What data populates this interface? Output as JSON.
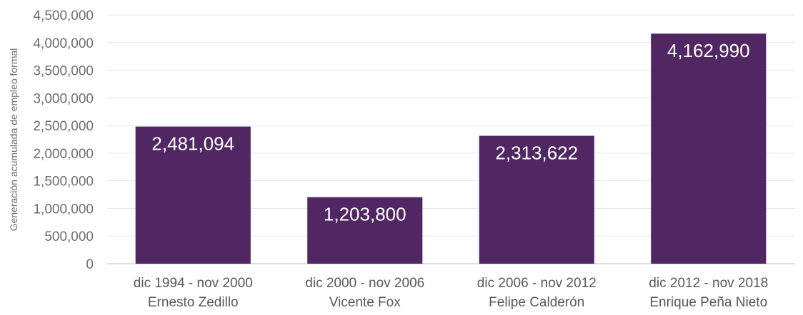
{
  "chart_data": {
    "type": "bar",
    "title": "",
    "ylabel": "Generación acumulada de empleo formal",
    "xlabel": "",
    "ylim": [
      0,
      4500000
    ],
    "yticks": [
      0,
      500000,
      1000000,
      1500000,
      2000000,
      2500000,
      3000000,
      3500000,
      4000000,
      4500000
    ],
    "ytick_labels": [
      "0",
      "500,000",
      "1,000,000",
      "1,500,000",
      "2,000,000",
      "2,500,000",
      "3,000,000",
      "3,500,000",
      "4,000,000",
      "4,500,000"
    ],
    "categories": [
      {
        "period": "dic 1994 - nov 2000",
        "name": "Ernesto Zedillo"
      },
      {
        "period": "dic 2000 - nov 2006",
        "name": "Vicente Fox"
      },
      {
        "period": "dic 2006 - nov 2012",
        "name": "Felipe Calderón"
      },
      {
        "period": "dic 2012 - nov 2018",
        "name": "Enrique Peña Nieto"
      }
    ],
    "values": [
      2481094,
      1203800,
      2313622,
      4162990
    ],
    "value_labels": [
      "2,481,094",
      "1,203,800",
      "2,313,622",
      "4,162,990"
    ],
    "grid": true,
    "legend": "none",
    "colors": {
      "bar": "#502763",
      "grid": "#e6e6e6",
      "axis": "#bfbfbf"
    }
  }
}
